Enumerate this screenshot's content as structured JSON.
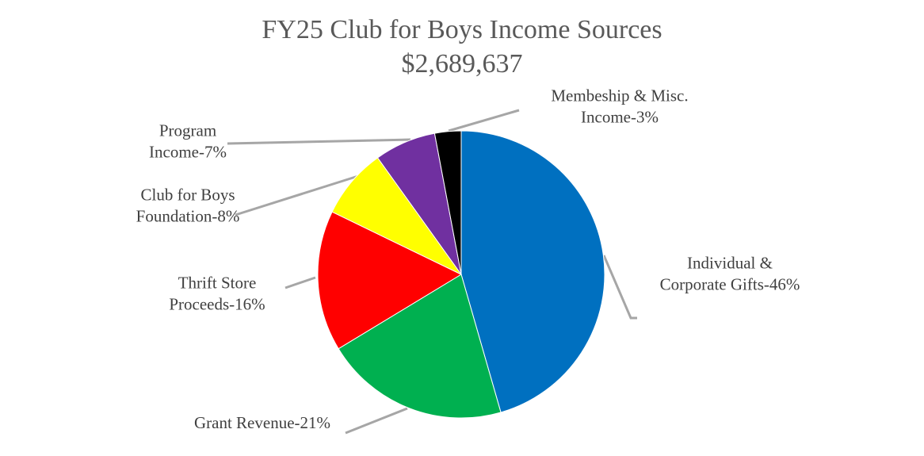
{
  "chart_data": {
    "type": "pie",
    "title": "FY25 Club for Boys Income Sources",
    "subtitle": "$2,689,637",
    "slices": [
      {
        "label": "Individual & Corporate Gifts-46%",
        "label_lines": [
          "Individual &",
          "Corporate Gifts-46%"
        ],
        "value": 46,
        "color": "#0070c0"
      },
      {
        "label": "Grant Revenue-21%",
        "label_lines": [
          "Grant Revenue-21%"
        ],
        "value": 21,
        "color": "#00b050"
      },
      {
        "label": "Thrift Store Proceeds-16%",
        "label_lines": [
          "Thrift Store",
          "Proceeds-16%"
        ],
        "value": 16,
        "color": "#ff0000"
      },
      {
        "label": "Club for Boys Foundation-8%",
        "label_lines": [
          "Club for Boys",
          "Foundation-8%"
        ],
        "value": 8,
        "color": "#ffff00"
      },
      {
        "label": "Program Income-7%",
        "label_lines": [
          "Program",
          "Income-7%"
        ],
        "value": 7,
        "color": "#7030a0"
      },
      {
        "label": "Membeship & Misc. Income-3%",
        "label_lines": [
          "Membeship & Misc.",
          "Income-3%"
        ],
        "value": 3,
        "color": "#000000"
      }
    ],
    "start_angle": "12 o'clock",
    "direction": "clockwise",
    "legend": "none"
  }
}
